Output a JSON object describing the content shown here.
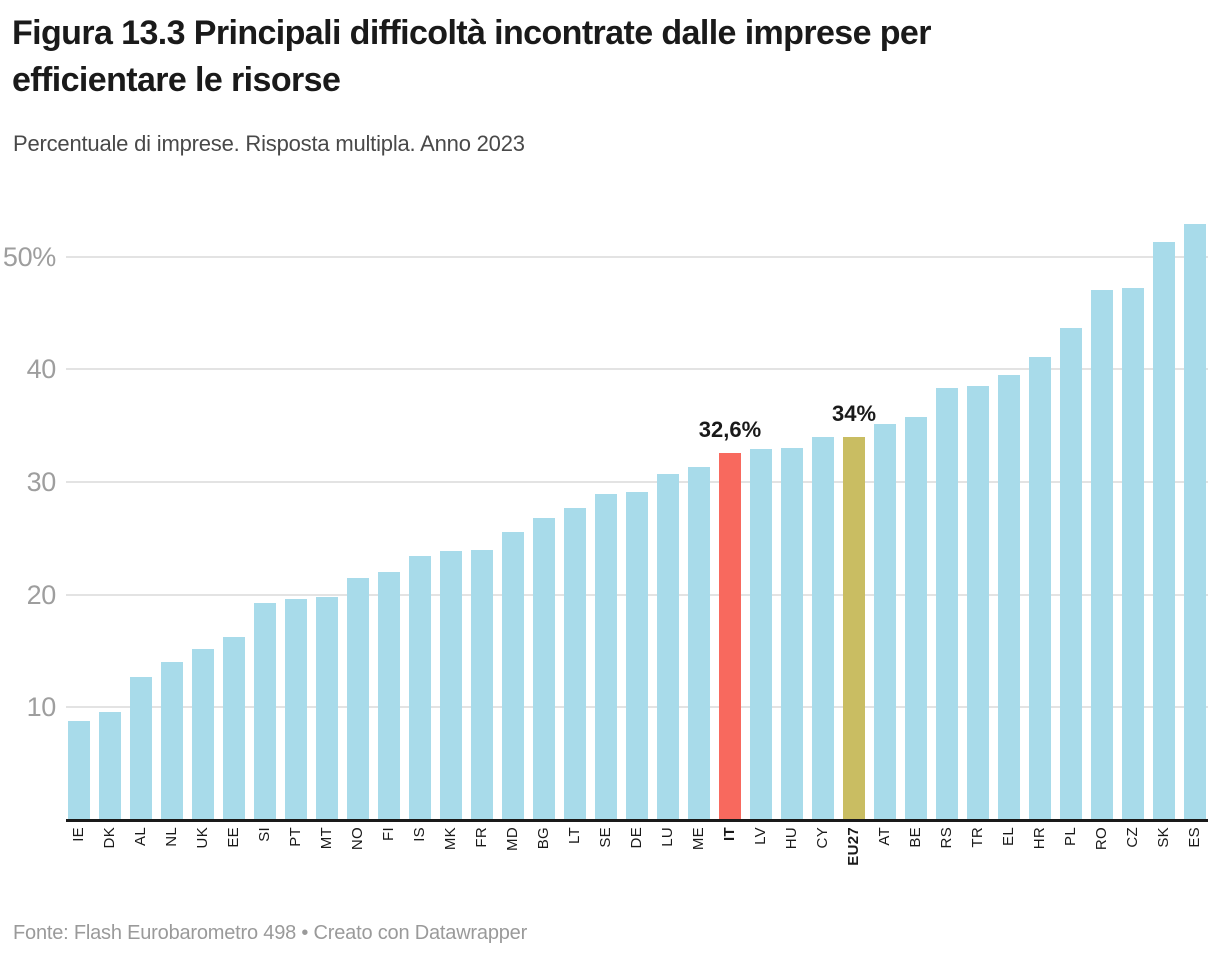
{
  "title": {
    "line1": "Figura 13.3 Principali difficoltà incontrate dalle imprese per",
    "line2": "efficientare le risorse"
  },
  "subtitle": "Percentuale di imprese. Risposta multipla. Anno 2023",
  "footer": "Fonte: Flash Eurobarometro 498 • Creato con Datawrapper",
  "colors": {
    "title": "#1a1a1a",
    "subtitle": "#494949",
    "footer": "#9a9a9a",
    "grid": "#e3e3e3",
    "baseline": "#1a1a1a",
    "axis_text": "#9e9e9e",
    "bar_default": "#a8dbea",
    "bar_italy": "#f8695e",
    "bar_eu27": "#c9bd62",
    "annotation": "#1a1a1a"
  },
  "chart_data": {
    "type": "bar",
    "title": "Figura 13.3 Principali difficoltà incontrate dalle imprese per efficientare le risorse",
    "subtitle": "Percentuale di imprese. Risposta multipla. Anno 2023",
    "xlabel": "",
    "ylabel": "Percentuale di imprese",
    "ylim": [
      0,
      55
    ],
    "grid": true,
    "legend_position": "none",
    "categories": [
      "IE",
      "DK",
      "AL",
      "NL",
      "UK",
      "EE",
      "SI",
      "PT",
      "MT",
      "NO",
      "FI",
      "IS",
      "MK",
      "FR",
      "MD",
      "BG",
      "LT",
      "SE",
      "DE",
      "LU",
      "ME",
      "IT",
      "LV",
      "HU",
      "CY",
      "EU27",
      "AT",
      "BE",
      "RS",
      "TR",
      "EL",
      "HR",
      "PL",
      "RO",
      "CZ",
      "SK",
      "ES"
    ],
    "values": [
      8.8,
      9.6,
      12.7,
      14.0,
      15.2,
      16.2,
      19.3,
      19.6,
      19.8,
      21.5,
      22.0,
      23.4,
      23.9,
      24.0,
      25.6,
      26.8,
      27.7,
      28.9,
      29.1,
      30.7,
      31.3,
      32.6,
      32.9,
      33.0,
      34.0,
      34.0,
      35.1,
      35.8,
      38.3,
      38.5,
      39.5,
      41.1,
      43.7,
      47.0,
      47.2,
      51.3,
      52.9
    ],
    "bar_colors": {
      "IT": "#f8695e",
      "EU27": "#c9bd62"
    },
    "default_bar_color": "#a8dbea",
    "bold_categories": [
      "IT",
      "EU27"
    ],
    "annotations": [
      {
        "category": "IT",
        "label": "32,6%"
      },
      {
        "category": "EU27",
        "label": "34%"
      }
    ],
    "y_ticks": [
      {
        "value": 10,
        "label": "10"
      },
      {
        "value": 20,
        "label": "20"
      },
      {
        "value": 30,
        "label": "30"
      },
      {
        "value": 40,
        "label": "40"
      },
      {
        "value": 50,
        "label": "50%"
      }
    ]
  }
}
